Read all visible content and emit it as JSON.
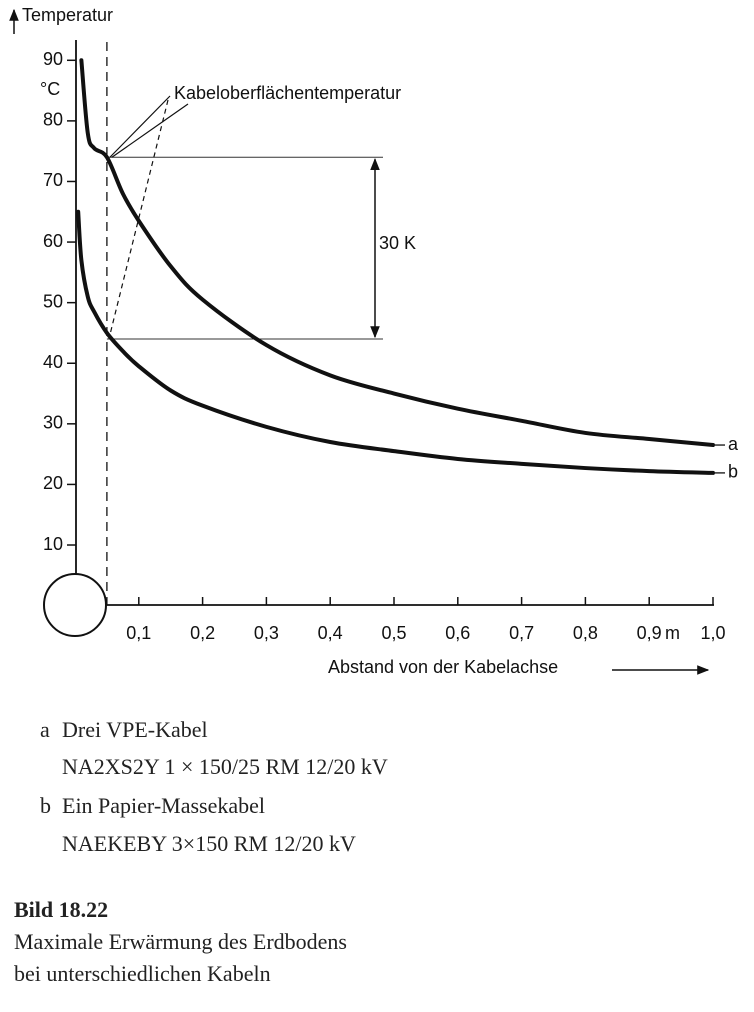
{
  "chart_data": {
    "type": "line",
    "y_label": "Temperatur",
    "y_unit": "°C",
    "x_label": "Abstand von der Kabelachse",
    "x_unit": "m",
    "x": [
      0.005,
      0.01,
      0.02,
      0.03,
      0.05,
      0.075,
      0.1,
      0.15,
      0.2,
      0.3,
      0.4,
      0.5,
      0.6,
      0.7,
      0.8,
      0.9,
      1.0
    ],
    "series": [
      {
        "name": "a",
        "color": "#111111",
        "values": [
          null,
          90,
          78,
          75.5,
          74,
          68,
          63.5,
          56,
          50.5,
          43,
          38,
          35,
          32.5,
          30.5,
          28.5,
          27.5,
          26.5
        ]
      },
      {
        "name": "b",
        "color": "#111111",
        "values": [
          65,
          57,
          51,
          48.5,
          45,
          42,
          39.5,
          35.5,
          33,
          29.5,
          27,
          25.5,
          24.2,
          23.4,
          22.7,
          22.2,
          21.9
        ]
      }
    ],
    "xlim": [
      0,
      1.0
    ],
    "xticks": [
      {
        "value": 0.1,
        "label": "0,1"
      },
      {
        "value": 0.2,
        "label": "0,2"
      },
      {
        "value": 0.3,
        "label": "0,3"
      },
      {
        "value": 0.4,
        "label": "0,4"
      },
      {
        "value": 0.5,
        "label": "0,5"
      },
      {
        "value": 0.6,
        "label": "0,6"
      },
      {
        "value": 0.7,
        "label": "0,7"
      },
      {
        "value": 0.8,
        "label": "0,8"
      },
      {
        "value": 0.9,
        "label": "0,9"
      },
      {
        "value": 1.0,
        "label": "1,0"
      }
    ],
    "ylim": [
      0,
      95
    ],
    "yticks": [
      10,
      20,
      30,
      40,
      50,
      60,
      70,
      80,
      90
    ],
    "surface": {
      "text": "Kabeloberflächentemperatur",
      "x": 0.05
    },
    "difference": {
      "text": "30 K",
      "values": [
        74,
        44
      ]
    }
  },
  "legend_notes": [
    {
      "key": "a",
      "lines": [
        "Drei VPE-Kabel",
        "NA2XS2Y 1 × 150/25 RM 12/20 kV"
      ]
    },
    {
      "key": "b",
      "lines": [
        "Ein Papier-Massekabel",
        "NAEKEBY 3×150 RM 12/20 kV"
      ]
    }
  ],
  "caption": {
    "label": "Bild 18.22",
    "lines": [
      "Maximale Erwärmung des Erdbodens",
      "bei unterschiedlichen Kabeln"
    ]
  }
}
